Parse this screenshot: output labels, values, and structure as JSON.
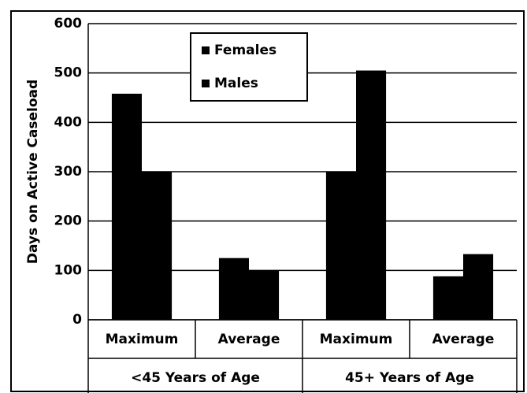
{
  "chart_data": {
    "type": "bar",
    "y_label": "Days on Active Caseload",
    "categories": [
      "Maximum",
      "Average",
      "Maximum",
      "Average"
    ],
    "groups": [
      "<45 Years of Age",
      "45+ Years of Age"
    ],
    "series": [
      {
        "name": "Females",
        "color": "#000000",
        "values": [
          458,
          125,
          300,
          88
        ]
      },
      {
        "name": "Males",
        "color": "#000000",
        "values": [
          300,
          100,
          505,
          133
        ]
      }
    ],
    "ylim": [
      0,
      600
    ],
    "yticks": [
      0,
      100,
      200,
      300,
      400,
      500,
      600
    ],
    "grid": true,
    "legend": "top-left"
  }
}
